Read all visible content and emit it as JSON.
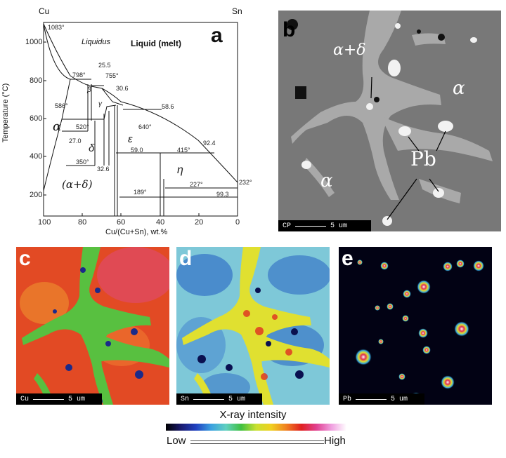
{
  "panel_a": {
    "letter": "a",
    "top_left_label": "Cu",
    "top_right_label": "Sn",
    "liquid_label": "Liquid (melt)",
    "liquidus_label": "Liquidus",
    "ylabel": "Temperature (°C)",
    "xlabel": "Cu/(Cu+Sn), wt.%",
    "yticks": [
      "1000",
      "800",
      "600",
      "400",
      "200"
    ],
    "xticks": [
      "100",
      "80",
      "60",
      "40",
      "20",
      "0"
    ],
    "annotations": [
      "1083°",
      "798°",
      "25.5",
      "755°",
      "30.6",
      "β",
      "586°",
      "γ",
      "58.6",
      "520°",
      "640°",
      "27.0",
      "δ",
      "ε",
      "92.4",
      "59.0",
      "415°",
      "350°",
      "32.6",
      "η",
      "232°",
      "227°",
      "189°",
      "99.3"
    ],
    "phase_alpha": "α",
    "phase_alpha_delta": "(α+δ)"
  },
  "panel_b": {
    "letter": "b",
    "label_alpha_delta": "α+δ",
    "label_alpha_1": "α",
    "label_alpha_2": "α",
    "label_pb": "Pb",
    "scalebar_mode": "CP",
    "scalebar_length": "5 um"
  },
  "panel_c": {
    "letter": "c",
    "element": "Cu",
    "scalebar_length": "5 um"
  },
  "panel_d": {
    "letter": "d",
    "element": "Sn",
    "scalebar_length": "5 um"
  },
  "panel_e": {
    "letter": "e",
    "element": "Pb",
    "scalebar_length": "5 um"
  },
  "colorbar": {
    "title": "X-ray intensity",
    "low_label": "Low",
    "high_label": "High",
    "stops": [
      "#000000",
      "#1a1a6e",
      "#2040c0",
      "#3aa0e0",
      "#60d0c0",
      "#40c040",
      "#c8e030",
      "#f0d020",
      "#f08020",
      "#e02020",
      "#e04090",
      "#f0a0e0",
      "#ffffff"
    ]
  }
}
